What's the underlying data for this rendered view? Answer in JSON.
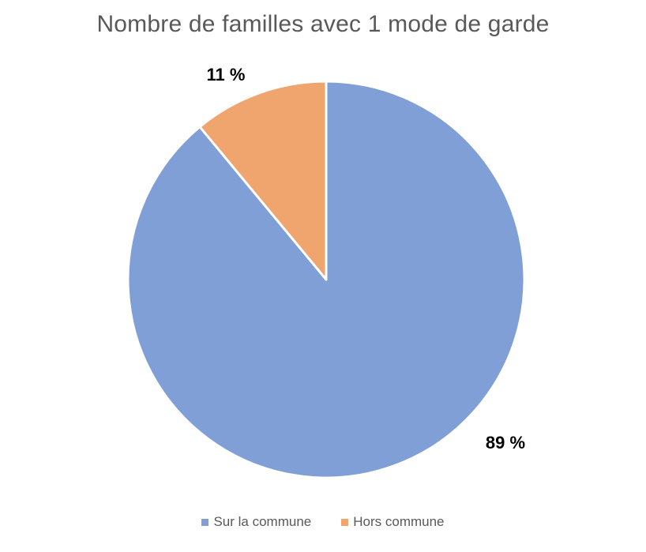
{
  "chart_data": {
    "type": "pie",
    "title": "Nombre de familles avec 1 mode de garde",
    "categories": [
      "Sur la commune",
      "Hors commune"
    ],
    "values": [
      89,
      11
    ],
    "labels": [
      "89 %",
      "11 %"
    ],
    "colors": [
      "#7f9fd6",
      "#f0a46e"
    ],
    "legend_position": "bottom"
  }
}
